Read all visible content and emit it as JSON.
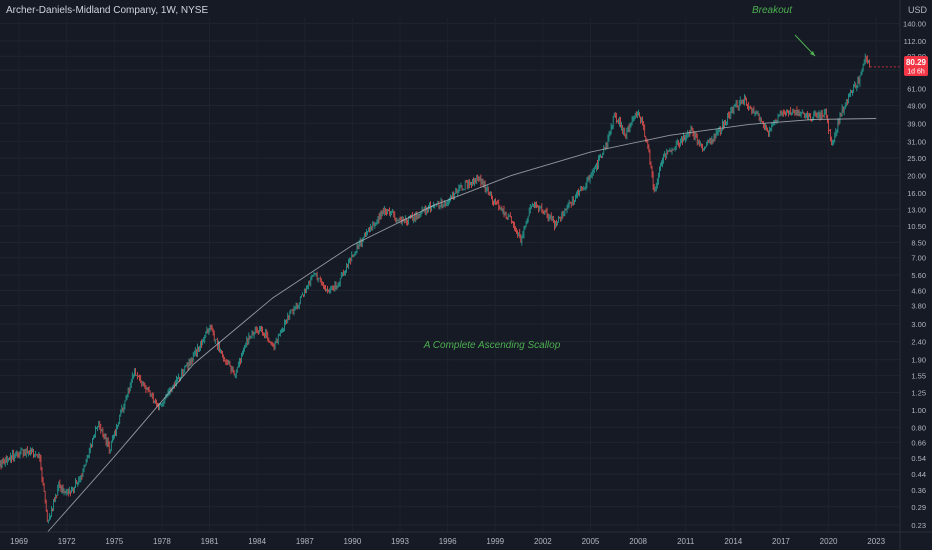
{
  "header": {
    "symbol_title": "Archer-Daniels-Midland Company, 1W, NYSE"
  },
  "price_axis": {
    "currency": "USD",
    "ticks": [
      0.23,
      0.29,
      0.36,
      0.44,
      0.54,
      0.66,
      0.8,
      1.0,
      1.25,
      1.55,
      1.9,
      2.4,
      3.0,
      3.8,
      4.6,
      5.6,
      7.0,
      8.5,
      10.5,
      13.0,
      16.0,
      20.0,
      25.0,
      31.0,
      39.0,
      49.0,
      61.0,
      77.0,
      92.0,
      112.0,
      140.0
    ],
    "tick_labels": [
      "0.23",
      "0.29",
      "0.36",
      "0.44",
      "0.54",
      "0.66",
      "0.80",
      "1.00",
      "1.25",
      "1.55",
      "1.90",
      "2.40",
      "3.00",
      "3.80",
      "4.60",
      "5.60",
      "7.00",
      "8.50",
      "10.50",
      "13.00",
      "16.00",
      "20.00",
      "25.00",
      "31.00",
      "39.00",
      "49.00",
      "61.00",
      "77.00",
      "92.00",
      "112.00",
      "140.00"
    ],
    "last_price_label": "80.29",
    "countdown_label": "1d 6h",
    "last_price_color": "#f23645"
  },
  "time_axis": {
    "tick_labels": [
      "1969",
      "1972",
      "1975",
      "1978",
      "1981",
      "1984",
      "1987",
      "1990",
      "1993",
      "1996",
      "1999",
      "2002",
      "2005",
      "2008",
      "2011",
      "2014",
      "2017",
      "2020",
      "2023"
    ]
  },
  "annotations": {
    "breakout": "Breakout",
    "scallop": "A Complete Ascending Scallop",
    "annotation_color": "#4caf50"
  },
  "colors": {
    "background": "#161a25",
    "up_candle": "#26a69a",
    "down_candle": "#ef5350",
    "curve": "#b2b5be",
    "axis_text": "#b2b5be"
  },
  "chart_data": {
    "type": "candlestick",
    "title": "Archer-Daniels-Midland Company, 1W, NYSE",
    "scale": "log",
    "ylabel": "USD",
    "ylim": [
      0.21,
      150
    ],
    "xlim": [
      1967.8,
      2024.5
    ],
    "grid": true,
    "last_price": 80.29,
    "approximate_close_path": [
      {
        "x": 1967.8,
        "y": 0.5
      },
      {
        "x": 1968.5,
        "y": 0.55
      },
      {
        "x": 1969.5,
        "y": 0.6
      },
      {
        "x": 1970.3,
        "y": 0.55
      },
      {
        "x": 1970.8,
        "y": 0.23
      },
      {
        "x": 1971.5,
        "y": 0.38
      },
      {
        "x": 1972.2,
        "y": 0.34
      },
      {
        "x": 1973.0,
        "y": 0.45
      },
      {
        "x": 1974.0,
        "y": 0.85
      },
      {
        "x": 1974.7,
        "y": 0.6
      },
      {
        "x": 1975.5,
        "y": 1.0
      },
      {
        "x": 1976.3,
        "y": 1.65
      },
      {
        "x": 1977.0,
        "y": 1.3
      },
      {
        "x": 1977.8,
        "y": 1.05
      },
      {
        "x": 1978.6,
        "y": 1.3
      },
      {
        "x": 1979.5,
        "y": 1.7
      },
      {
        "x": 1980.3,
        "y": 2.2
      },
      {
        "x": 1981.0,
        "y": 2.9
      },
      {
        "x": 1981.8,
        "y": 2.0
      },
      {
        "x": 1982.6,
        "y": 1.6
      },
      {
        "x": 1983.5,
        "y": 2.6
      },
      {
        "x": 1984.3,
        "y": 2.8
      },
      {
        "x": 1985.0,
        "y": 2.2
      },
      {
        "x": 1985.8,
        "y": 3.1
      },
      {
        "x": 1986.8,
        "y": 4.2
      },
      {
        "x": 1987.6,
        "y": 5.9
      },
      {
        "x": 1988.3,
        "y": 4.5
      },
      {
        "x": 1989.0,
        "y": 4.9
      },
      {
        "x": 1990.0,
        "y": 7.2
      },
      {
        "x": 1991.0,
        "y": 9.8
      },
      {
        "x": 1992.0,
        "y": 13.0
      },
      {
        "x": 1993.0,
        "y": 11.2
      },
      {
        "x": 1994.0,
        "y": 12.0
      },
      {
        "x": 1995.0,
        "y": 13.4
      },
      {
        "x": 1996.0,
        "y": 14.5
      },
      {
        "x": 1997.0,
        "y": 17.5
      },
      {
        "x": 1998.0,
        "y": 19.5
      },
      {
        "x": 1999.0,
        "y": 14.0
      },
      {
        "x": 2000.0,
        "y": 11.5
      },
      {
        "x": 2000.6,
        "y": 8.8
      },
      {
        "x": 2001.3,
        "y": 13.8
      },
      {
        "x": 2002.0,
        "y": 13.0
      },
      {
        "x": 2002.8,
        "y": 10.5
      },
      {
        "x": 2003.6,
        "y": 13.5
      },
      {
        "x": 2004.5,
        "y": 17.0
      },
      {
        "x": 2005.3,
        "y": 22.0
      },
      {
        "x": 2006.0,
        "y": 30.0
      },
      {
        "x": 2006.5,
        "y": 44.0
      },
      {
        "x": 2007.2,
        "y": 34.0
      },
      {
        "x": 2008.0,
        "y": 46.0
      },
      {
        "x": 2008.6,
        "y": 30.0
      },
      {
        "x": 2009.0,
        "y": 16.0
      },
      {
        "x": 2009.5,
        "y": 25.0
      },
      {
        "x": 2010.5,
        "y": 30.0
      },
      {
        "x": 2011.3,
        "y": 36.0
      },
      {
        "x": 2012.0,
        "y": 28.0
      },
      {
        "x": 2013.0,
        "y": 34.0
      },
      {
        "x": 2014.0,
        "y": 48.0
      },
      {
        "x": 2014.7,
        "y": 52.0
      },
      {
        "x": 2015.6,
        "y": 42.0
      },
      {
        "x": 2016.2,
        "y": 35.0
      },
      {
        "x": 2017.0,
        "y": 44.0
      },
      {
        "x": 2018.0,
        "y": 45.0
      },
      {
        "x": 2019.0,
        "y": 42.0
      },
      {
        "x": 2019.8,
        "y": 45.0
      },
      {
        "x": 2020.2,
        "y": 30.0
      },
      {
        "x": 2020.8,
        "y": 45.0
      },
      {
        "x": 2021.5,
        "y": 60.0
      },
      {
        "x": 2022.0,
        "y": 70.0
      },
      {
        "x": 2022.3,
        "y": 95.0
      },
      {
        "x": 2022.6,
        "y": 80.29
      }
    ],
    "scallop_curve": [
      {
        "x": 1970.8,
        "y": 0.21
      },
      {
        "x": 1975.0,
        "y": 0.55
      },
      {
        "x": 1980.0,
        "y": 1.8
      },
      {
        "x": 1985.0,
        "y": 4.2
      },
      {
        "x": 1990.0,
        "y": 8.2
      },
      {
        "x": 1995.0,
        "y": 13.5
      },
      {
        "x": 2000.0,
        "y": 20.0
      },
      {
        "x": 2005.0,
        "y": 27.0
      },
      {
        "x": 2010.0,
        "y": 33.5
      },
      {
        "x": 2015.0,
        "y": 38.5
      },
      {
        "x": 2019.0,
        "y": 41.0
      },
      {
        "x": 2023.0,
        "y": 41.5
      }
    ]
  }
}
